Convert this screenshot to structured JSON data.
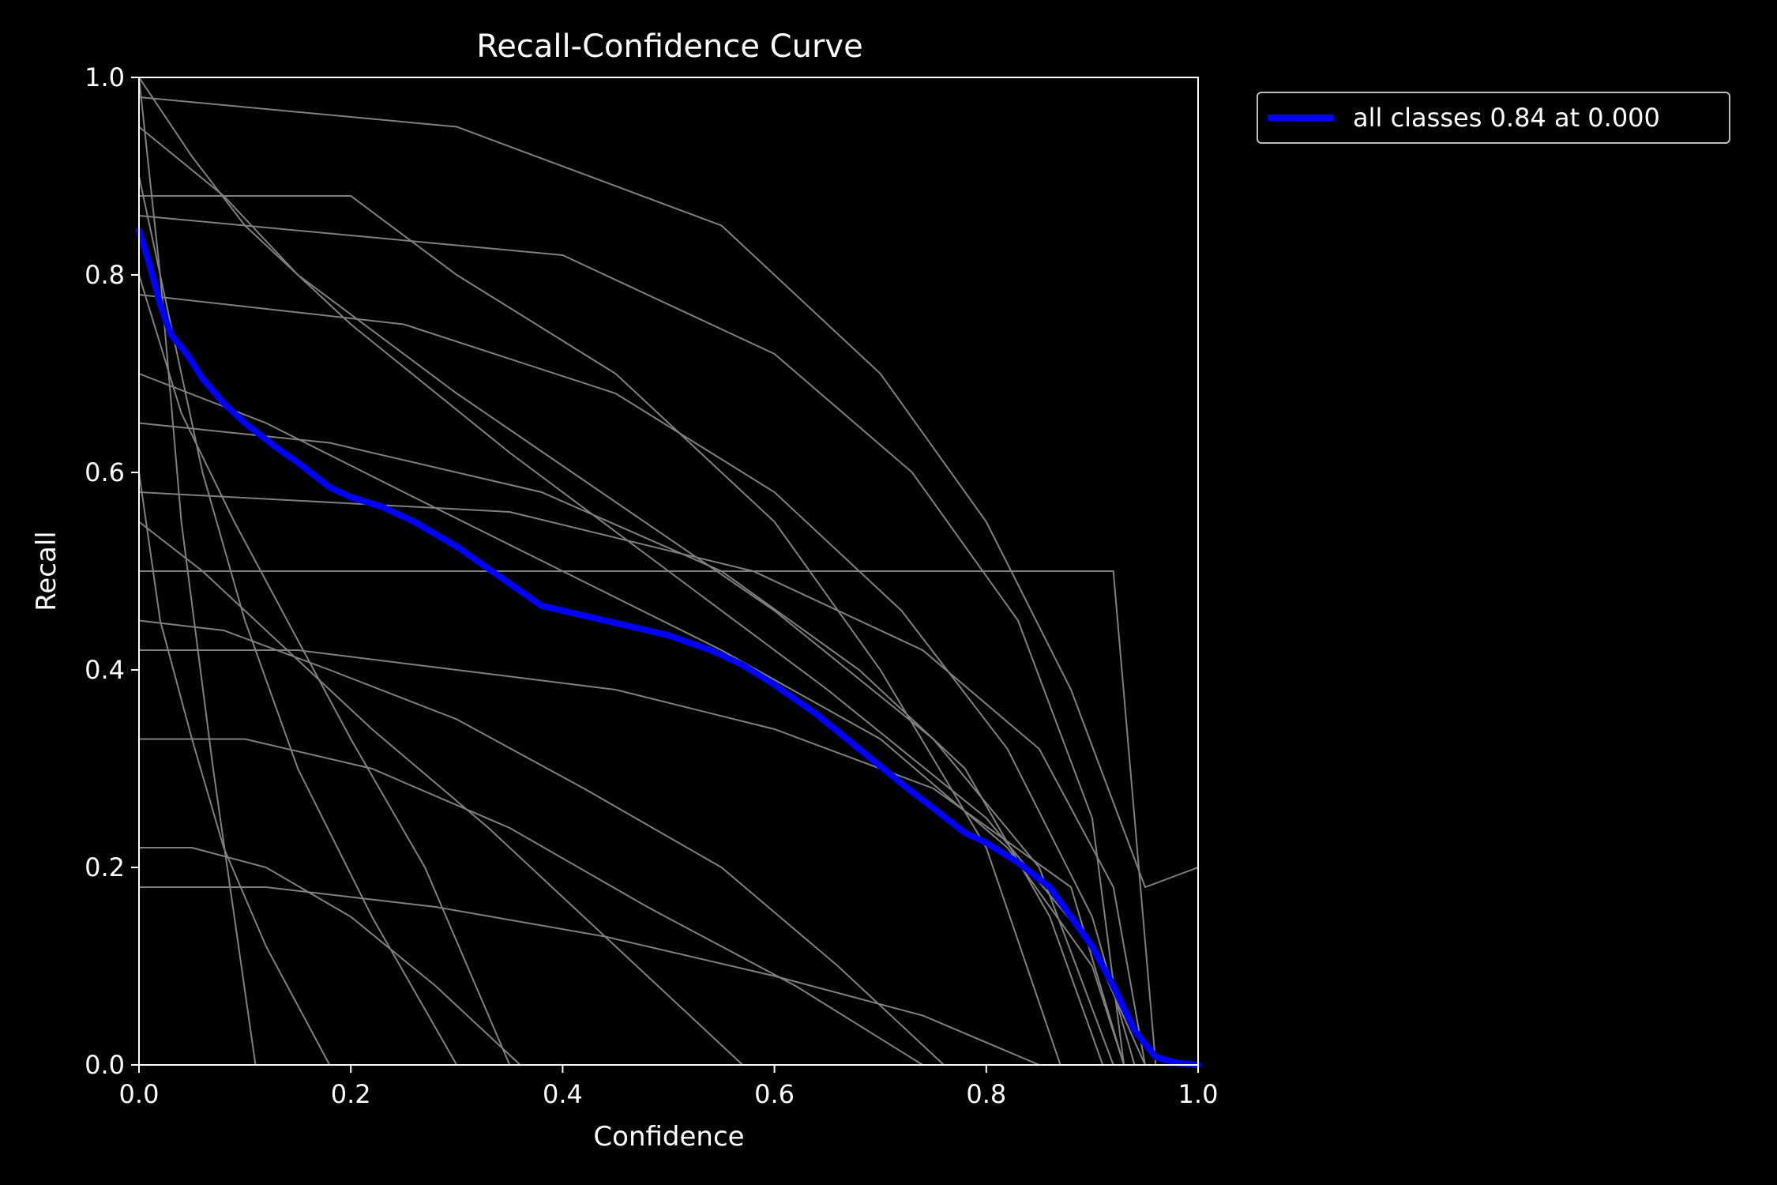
{
  "colors": {
    "background": "#000000",
    "axes": "#ffffff",
    "class_curves": "#808080",
    "all_classes": "#0000ff"
  },
  "chart_data": {
    "type": "line",
    "title": "Recall-Confidence Curve",
    "xlabel": "Confidence",
    "ylabel": "Recall",
    "xlim": [
      0,
      1
    ],
    "ylim": [
      0,
      1
    ],
    "x_ticks": [
      "0.0",
      "0.2",
      "0.4",
      "0.6",
      "0.8",
      "1.0"
    ],
    "y_ticks": [
      "0.0",
      "0.2",
      "0.4",
      "0.6",
      "0.8",
      "1.0"
    ],
    "grid": false,
    "legend_position": "outside-top-right",
    "series": [
      {
        "name": "all classes 0.84 at 0.000",
        "color": "#0000ff",
        "x": [
          0.0,
          0.01,
          0.02,
          0.03,
          0.045,
          0.06,
          0.08,
          0.1,
          0.13,
          0.15,
          0.18,
          0.2,
          0.23,
          0.26,
          0.3,
          0.34,
          0.38,
          0.42,
          0.46,
          0.5,
          0.54,
          0.57,
          0.6,
          0.64,
          0.68,
          0.72,
          0.75,
          0.78,
          0.8,
          0.83,
          0.86,
          0.88,
          0.9,
          0.92,
          0.94,
          0.96,
          0.98,
          1.0
        ],
        "y": [
          0.845,
          0.81,
          0.77,
          0.74,
          0.72,
          0.695,
          0.67,
          0.65,
          0.625,
          0.61,
          0.585,
          0.575,
          0.565,
          0.55,
          0.525,
          0.495,
          0.465,
          0.455,
          0.445,
          0.435,
          0.42,
          0.405,
          0.385,
          0.355,
          0.32,
          0.285,
          0.26,
          0.235,
          0.225,
          0.205,
          0.18,
          0.15,
          0.12,
          0.08,
          0.035,
          0.008,
          0.002,
          0.0
        ]
      }
    ],
    "class_curves": [
      {
        "x": [
          0.0,
          0.05,
          0.1,
          0.2,
          0.35,
          0.5,
          0.65,
          0.8,
          0.9,
          0.95
        ],
        "y": [
          1.0,
          0.92,
          0.85,
          0.75,
          0.62,
          0.5,
          0.38,
          0.25,
          0.12,
          0.0
        ]
      },
      {
        "x": [
          0.0,
          0.03,
          0.06,
          0.1,
          0.15,
          0.22,
          0.3
        ],
        "y": [
          0.9,
          0.75,
          0.6,
          0.45,
          0.3,
          0.15,
          0.0
        ]
      },
      {
        "x": [
          0.0,
          0.08,
          0.15,
          0.3,
          0.45,
          0.6,
          0.75,
          0.85,
          0.92
        ],
        "y": [
          0.95,
          0.88,
          0.8,
          0.68,
          0.57,
          0.46,
          0.33,
          0.2,
          0.0
        ]
      },
      {
        "x": [
          0.0,
          0.12,
          0.25,
          0.4,
          0.55,
          0.7,
          0.82,
          0.9,
          0.93
        ],
        "y": [
          0.7,
          0.65,
          0.58,
          0.5,
          0.42,
          0.33,
          0.22,
          0.1,
          0.0
        ]
      },
      {
        "x": [
          0.0,
          0.02,
          0.05,
          0.08,
          0.12,
          0.18
        ],
        "y": [
          0.6,
          0.45,
          0.33,
          0.22,
          0.12,
          0.0
        ]
      },
      {
        "x": [
          0.0,
          0.2,
          0.4,
          0.6,
          0.75,
          0.85,
          0.92,
          0.96
        ],
        "y": [
          0.5,
          0.5,
          0.5,
          0.5,
          0.5,
          0.5,
          0.5,
          0.0
        ]
      },
      {
        "x": [
          0.0,
          0.1,
          0.2,
          0.3,
          0.45,
          0.6,
          0.7,
          0.8,
          0.87
        ],
        "y": [
          0.88,
          0.88,
          0.88,
          0.8,
          0.7,
          0.55,
          0.4,
          0.22,
          0.0
        ]
      },
      {
        "x": [
          0.0,
          0.15,
          0.3,
          0.45,
          0.6,
          0.75,
          0.88,
          0.93
        ],
        "y": [
          0.42,
          0.42,
          0.4,
          0.38,
          0.34,
          0.28,
          0.18,
          0.0
        ]
      },
      {
        "x": [
          0.0,
          0.04,
          0.09,
          0.14,
          0.2,
          0.27,
          0.35
        ],
        "y": [
          0.8,
          0.66,
          0.55,
          0.45,
          0.33,
          0.2,
          0.0
        ]
      },
      {
        "x": [
          0.0,
          0.25,
          0.45,
          0.6,
          0.72,
          0.82,
          0.9,
          0.94
        ],
        "y": [
          0.78,
          0.75,
          0.68,
          0.58,
          0.46,
          0.32,
          0.15,
          0.0
        ]
      },
      {
        "x": [
          0.0,
          0.1,
          0.22,
          0.35,
          0.48,
          0.62,
          0.74
        ],
        "y": [
          0.33,
          0.33,
          0.3,
          0.24,
          0.16,
          0.08,
          0.0
        ]
      },
      {
        "x": [
          0.0,
          0.3,
          0.55,
          0.7,
          0.8,
          0.88,
          0.95,
          1.0
        ],
        "y": [
          0.98,
          0.95,
          0.85,
          0.7,
          0.55,
          0.38,
          0.18,
          0.2
        ]
      },
      {
        "x": [
          0.0,
          0.06,
          0.13,
          0.22,
          0.33,
          0.45,
          0.57
        ],
        "y": [
          0.55,
          0.5,
          0.43,
          0.34,
          0.24,
          0.12,
          0.0
        ]
      },
      {
        "x": [
          0.0,
          0.18,
          0.38,
          0.55,
          0.68,
          0.78,
          0.86,
          0.91
        ],
        "y": [
          0.65,
          0.63,
          0.58,
          0.5,
          0.4,
          0.3,
          0.15,
          0.0
        ]
      },
      {
        "x": [
          0.0,
          0.05,
          0.12,
          0.2,
          0.28,
          0.36
        ],
        "y": [
          0.22,
          0.22,
          0.2,
          0.15,
          0.08,
          0.0
        ]
      },
      {
        "x": [
          0.0,
          0.4,
          0.6,
          0.73,
          0.83,
          0.9,
          0.93
        ],
        "y": [
          0.86,
          0.82,
          0.72,
          0.6,
          0.45,
          0.25,
          0.0
        ]
      },
      {
        "x": [
          0.0,
          0.08,
          0.18,
          0.3,
          0.42,
          0.55,
          0.66,
          0.76
        ],
        "y": [
          0.45,
          0.44,
          0.4,
          0.35,
          0.28,
          0.2,
          0.1,
          0.0
        ]
      },
      {
        "x": [
          0.0,
          0.02,
          0.04,
          0.07,
          0.11
        ],
        "y": [
          1.0,
          0.8,
          0.55,
          0.3,
          0.0
        ]
      },
      {
        "x": [
          0.0,
          0.35,
          0.58,
          0.74,
          0.85,
          0.92,
          0.95
        ],
        "y": [
          0.58,
          0.56,
          0.5,
          0.42,
          0.32,
          0.18,
          0.0
        ]
      },
      {
        "x": [
          0.0,
          0.12,
          0.28,
          0.44,
          0.6,
          0.74,
          0.85
        ],
        "y": [
          0.18,
          0.18,
          0.16,
          0.13,
          0.09,
          0.05,
          0.0
        ]
      }
    ]
  }
}
